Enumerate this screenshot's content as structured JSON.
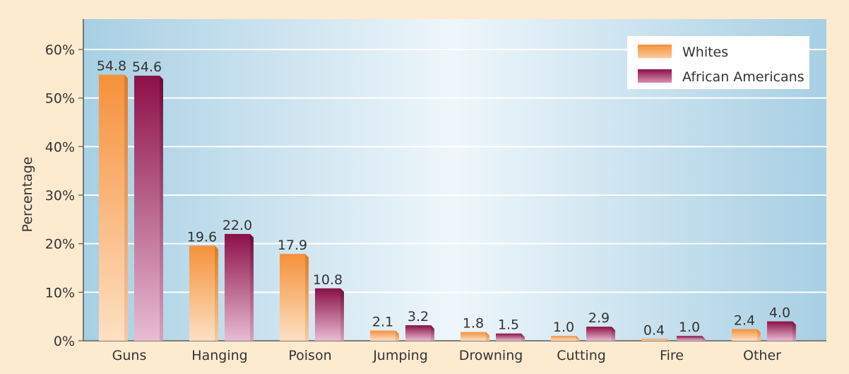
{
  "chart_data": {
    "type": "bar",
    "title": "",
    "xlabel": "",
    "ylabel": "Percentage",
    "ylim": [
      0,
      60
    ],
    "yticks": [
      "0%",
      "10%",
      "20%",
      "30%",
      "40%",
      "50%",
      "60%"
    ],
    "ytick_values": [
      0,
      10,
      20,
      30,
      40,
      50,
      60
    ],
    "grid": true,
    "legend_position": "top-right",
    "categories": [
      "Guns",
      "Hanging",
      "Poison",
      "Jumping",
      "Drowning",
      "Cutting",
      "Fire",
      "Other"
    ],
    "series": [
      {
        "name": "Whites",
        "color": "#f5913a",
        "values": [
          54.8,
          19.6,
          17.9,
          2.1,
          1.8,
          1.0,
          0.4,
          2.4
        ],
        "labels": [
          "54.8",
          "19.6",
          "17.9",
          "2.1",
          "1.8",
          "1.0",
          "0.4",
          "2.4"
        ]
      },
      {
        "name": "African Americans",
        "color": "#8c1048",
        "values": [
          54.6,
          22.0,
          10.8,
          3.2,
          1.5,
          2.9,
          1.0,
          4.0
        ],
        "labels": [
          "54.6",
          "22.0",
          "10.8",
          "3.2",
          "1.5",
          "2.9",
          "1.0",
          "4.0"
        ]
      }
    ]
  }
}
